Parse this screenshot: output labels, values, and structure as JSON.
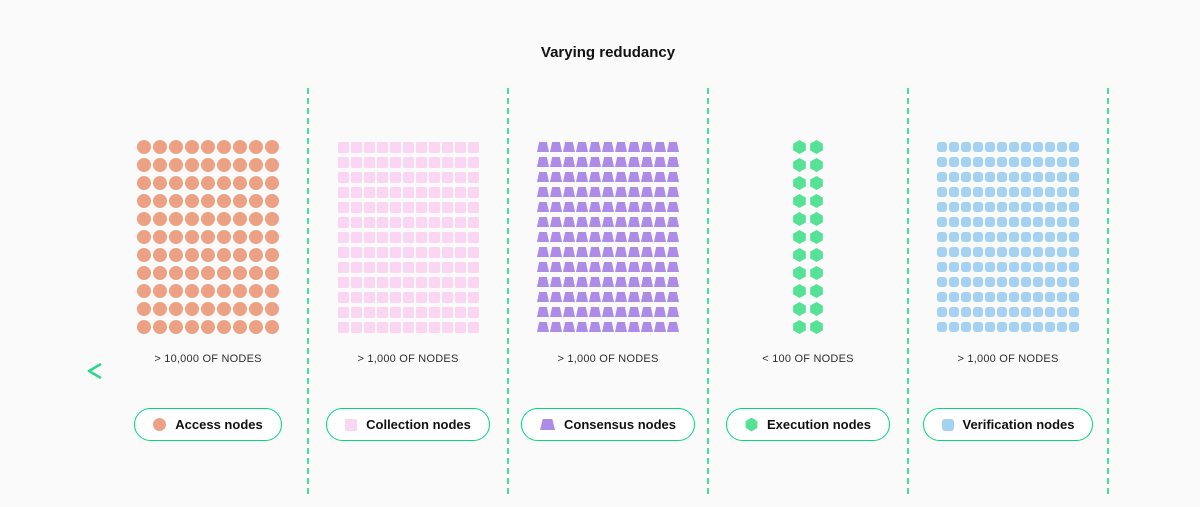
{
  "title": "Varying redudancy",
  "accent": {
    "pill_border": "#00d87d",
    "divider": "#42e29b"
  },
  "arrow": {
    "direction": "left",
    "color_start": "#2bd98c",
    "color_end": "#0c7a54"
  },
  "columns": [
    {
      "id": "access",
      "shape": "circle",
      "color": "#eda184",
      "rows": 11,
      "cols": 9,
      "count_label": "> 10,000 OF NODES",
      "legend_label": "Access nodes"
    },
    {
      "id": "collection",
      "shape": "square",
      "color": "#fbd6f2",
      "rows": 13,
      "cols": 11,
      "count_label": "> 1,000 OF NODES",
      "legend_label": "Collection nodes"
    },
    {
      "id": "consensus",
      "shape": "trapezoid",
      "color": "#ad8ce8",
      "rows": 13,
      "cols": 11,
      "count_label": "> 1,000 OF NODES",
      "legend_label": "Consensus nodes"
    },
    {
      "id": "execution",
      "shape": "hexagon",
      "color": "#55e296",
      "rows": 11,
      "cols": 2,
      "count_label": "< 100 OF NODES",
      "legend_label": "Execution nodes"
    },
    {
      "id": "verification",
      "shape": "rounded-square",
      "color": "#a5d2f3",
      "rows": 13,
      "cols": 12,
      "count_label": "> 1,000 OF NODES",
      "legend_label": "Verification nodes"
    }
  ]
}
